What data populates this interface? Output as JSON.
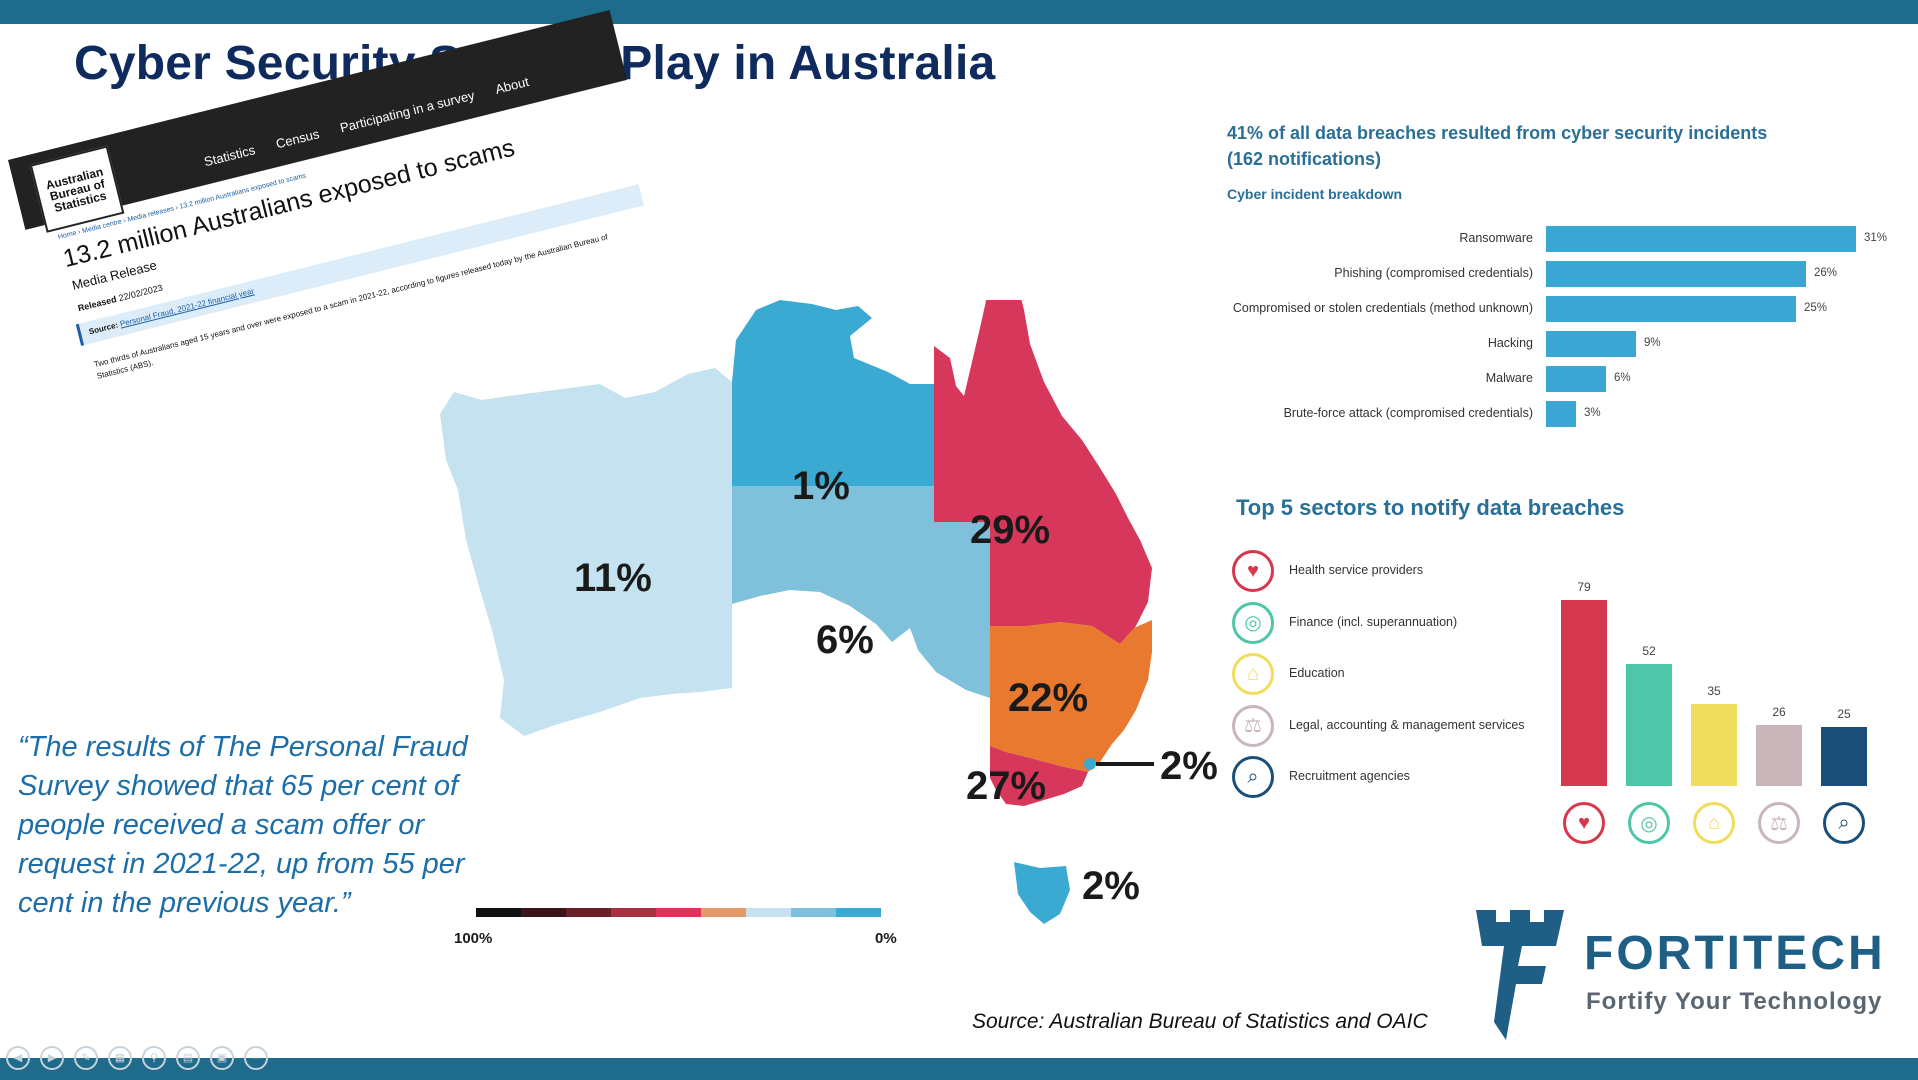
{
  "page": {
    "title": "Cyber Security State of Play in Australia",
    "quote": "“The results of The Personal Fraud Survey showed that 65 per cent of people received a scam offer or request in 2021-22, up from 55 per cent in the previous year.”",
    "source": "Source: Australian Bureau of Statistics and OAIC"
  },
  "abs_release": {
    "logo_lines": [
      "Australian",
      "Bureau of",
      "Statistics"
    ],
    "nav": [
      "Statistics",
      "Census",
      "Participating in a survey",
      "About"
    ],
    "breadcrumb": "Home › Media centre › Media releases › 13.2 million Australians exposed to scams",
    "headline": "13.2 million Australians exposed to scams",
    "subtitle": "Media Release",
    "released_label": "Released",
    "released_date": "22/02/2023",
    "source_label": "Source:",
    "source_link": "Personal Fraud, 2021-22 financial year",
    "body": "Two thirds of Australians aged 15 years and over were exposed to a scam in 2021-22, according to figures released today by the Australian Bureau of Statistics (ABS)."
  },
  "map": {
    "regions": [
      {
        "name": "WA",
        "label": "11%",
        "color": "#c4e2ef"
      },
      {
        "name": "NT",
        "label": "1%",
        "color": "#3aaad2"
      },
      {
        "name": "SA",
        "label": "6%",
        "color": "#7fc1da"
      },
      {
        "name": "QLD",
        "label": "29%",
        "color": "#d6375a"
      },
      {
        "name": "NSW",
        "label": "22%",
        "color": "#e8792f"
      },
      {
        "name": "VIC",
        "label": "27%",
        "color": "#d6375a"
      },
      {
        "name": "ACT",
        "label": "2%",
        "color": "#3aaad2"
      },
      {
        "name": "TAS",
        "label": "2%",
        "color": "#3aaad2"
      }
    ],
    "legend_colors": [
      "#111111",
      "#3a1418",
      "#6b2028",
      "#a8313f",
      "#d6375a",
      "#e39a6a",
      "#c4e2ef",
      "#7fc1da",
      "#3aaad2"
    ],
    "legend_left": "100%",
    "legend_right": "0%"
  },
  "chart_data": [
    {
      "type": "bar",
      "orientation": "horizontal",
      "title": "41% of all data breaches resulted from cyber security incidents (162 notifications)",
      "subtitle": "Cyber incident breakdown",
      "categories": [
        "Ransomware",
        "Phishing (compromised credentials)",
        "Compromised or stolen credentials (method unknown)",
        "Hacking",
        "Malware",
        "Brute-force attack (compromised credentials)"
      ],
      "values": [
        31,
        26,
        25,
        9,
        6,
        3
      ],
      "value_labels": [
        "31%",
        "26%",
        "25%",
        "9%",
        "6%",
        "3%"
      ],
      "color": "#39a6d3",
      "xlim": [
        0,
        31
      ]
    },
    {
      "type": "bar",
      "orientation": "vertical",
      "title": "Top 5 sectors to notify data breaches",
      "categories": [
        "Health service providers",
        "Finance (incl. superannuation)",
        "Education",
        "Legal, accounting & management services",
        "Recruitment agencies"
      ],
      "values": [
        79,
        52,
        35,
        26,
        25
      ],
      "colors": [
        "#d6384d",
        "#4ec6a8",
        "#f0dd5e",
        "#c8b6bb",
        "#1b4f7a"
      ],
      "icons": [
        "heart-pulse-icon",
        "coins-icon",
        "graduation-cap-icon",
        "scales-icon",
        "magnifier-person-icon"
      ],
      "ylim": [
        0,
        79
      ]
    }
  ],
  "logo": {
    "name": "FORTITECH",
    "tagline": "Fortify Your Technology"
  }
}
